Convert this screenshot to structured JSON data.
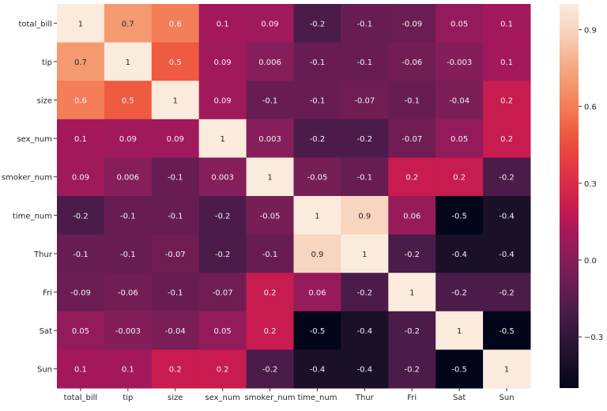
{
  "chart_data": {
    "type": "heatmap",
    "title": "",
    "xlabel": "",
    "ylabel": "",
    "x_labels": [
      "total_bill",
      "tip",
      "size",
      "sex_num",
      "smoker_num",
      "time_num",
      "Thur",
      "Fri",
      "Sat",
      "Sun"
    ],
    "y_labels": [
      "total_bill",
      "tip",
      "size",
      "sex_num",
      "smoker_num",
      "time_num",
      "Thur",
      "Fri",
      "Sat",
      "Sun"
    ],
    "values": [
      [
        "1",
        "0.7",
        "0.6",
        "0.1",
        "0.09",
        "-0.2",
        "-0.1",
        "-0.09",
        "0.05",
        "0.1"
      ],
      [
        "0.7",
        "1",
        "0.5",
        "0.09",
        "0.006",
        "-0.1",
        "-0.1",
        "-0.06",
        "-0.003",
        "0.1"
      ],
      [
        "0.6",
        "0.5",
        "1",
        "0.09",
        "-0.1",
        "-0.1",
        "-0.07",
        "-0.1",
        "-0.04",
        "0.2"
      ],
      [
        "0.1",
        "0.09",
        "0.09",
        "1",
        "0.003",
        "-0.2",
        "-0.2",
        "-0.07",
        "0.05",
        "0.2"
      ],
      [
        "0.09",
        "0.006",
        "-0.1",
        "0.003",
        "1",
        "-0.05",
        "-0.1",
        "0.2",
        "0.2",
        "-0.2"
      ],
      [
        "-0.2",
        "-0.1",
        "-0.1",
        "-0.2",
        "-0.05",
        "1",
        "0.9",
        "0.06",
        "-0.5",
        "-0.4"
      ],
      [
        "-0.1",
        "-0.1",
        "-0.07",
        "-0.2",
        "-0.1",
        "0.9",
        "1",
        "-0.2",
        "-0.4",
        "-0.4"
      ],
      [
        "-0.09",
        "-0.06",
        "-0.1",
        "-0.07",
        "0.2",
        "0.06",
        "-0.2",
        "1",
        "-0.2",
        "-0.2"
      ],
      [
        "0.05",
        "-0.003",
        "-0.04",
        "0.05",
        "0.2",
        "-0.5",
        "-0.4",
        "-0.2",
        "1",
        "-0.5"
      ],
      [
        "0.1",
        "0.1",
        "0.2",
        "0.2",
        "-0.2",
        "-0.4",
        "-0.4",
        "-0.2",
        "-0.5",
        "1"
      ]
    ],
    "colorbar": {
      "range": [
        -0.5,
        1.0
      ],
      "ticks": [
        0.9,
        0.6,
        0.3,
        0.0,
        -0.3
      ],
      "tick_labels": [
        "0.9",
        "0.6",
        "0.3",
        "0.0",
        "−0.3"
      ],
      "colormap": "rocket"
    },
    "annotated": true,
    "grid": false
  }
}
